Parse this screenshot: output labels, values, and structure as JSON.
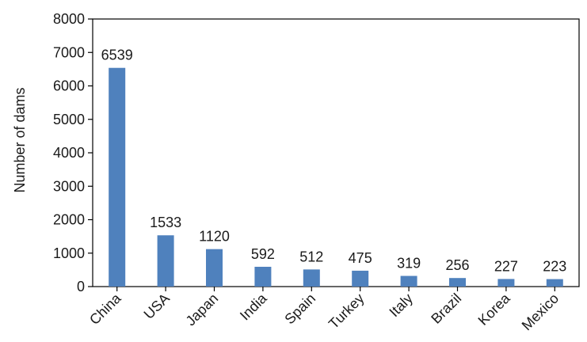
{
  "chart_data": {
    "type": "bar",
    "title": "",
    "xlabel": "",
    "ylabel": "Number of dams",
    "categories": [
      "China",
      "USA",
      "Japan",
      "India",
      "Spain",
      "Turkey",
      "Italy",
      "Brazil",
      "Korea",
      "Mexico"
    ],
    "values": [
      6539,
      1533,
      1120,
      592,
      512,
      475,
      319,
      256,
      227,
      223
    ],
    "value_labels": [
      "6539",
      "1533",
      "1120",
      "592",
      "512",
      "475",
      "319",
      "256",
      "227",
      "223"
    ],
    "ylim": [
      0,
      8000
    ],
    "yticks": [
      0,
      1000,
      2000,
      3000,
      4000,
      5000,
      6000,
      7000,
      8000
    ],
    "ytick_labels": [
      "0",
      "1000",
      "2000",
      "3000",
      "4000",
      "5000",
      "6000",
      "7000",
      "8000"
    ],
    "grid": false,
    "legend": "none",
    "bar_color": "#4f81bd"
  }
}
